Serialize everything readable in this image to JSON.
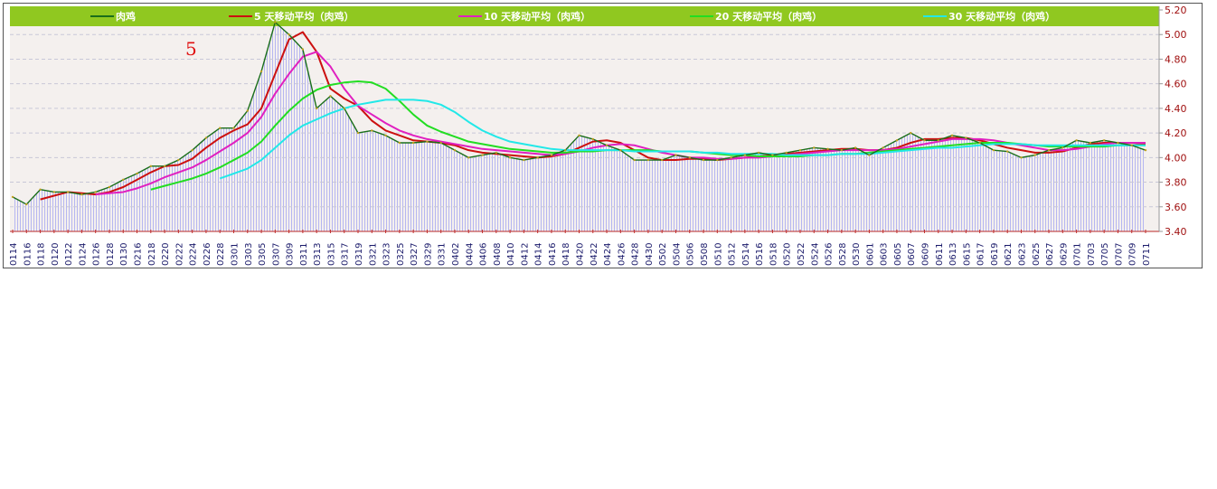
{
  "chart_data": {
    "type": "line",
    "annotation": "5",
    "ylim": [
      3.4,
      5.2
    ],
    "yticks": [
      "5.20",
      "5.00",
      "4.80",
      "4.60",
      "4.40",
      "4.20",
      "4.00",
      "3.80",
      "3.60",
      "3.40"
    ],
    "grid": true,
    "legend_position": "top",
    "x": [
      "0114",
      "0116",
      "0118",
      "0120",
      "0122",
      "0124",
      "0126",
      "0128",
      "0130",
      "0216",
      "0218",
      "0220",
      "0222",
      "0224",
      "0226",
      "0228",
      "0301",
      "0303",
      "0305",
      "0307",
      "0309",
      "0311",
      "0313",
      "0315",
      "0317",
      "0319",
      "0321",
      "0323",
      "0325",
      "0327",
      "0329",
      "0331",
      "0402",
      "0404",
      "0406",
      "0408",
      "0410",
      "0412",
      "0414",
      "0416",
      "0418",
      "0420",
      "0422",
      "0424",
      "0426",
      "0428",
      "0430",
      "0502",
      "0504",
      "0506",
      "0508",
      "0510",
      "0512",
      "0514",
      "0516",
      "0518",
      "0520",
      "0522",
      "0524",
      "0526",
      "0528",
      "0530",
      "0601",
      "0603",
      "0605",
      "0607",
      "0609",
      "0611",
      "0613",
      "0615",
      "0617",
      "0619",
      "0621",
      "0623",
      "0625",
      "0627",
      "0629",
      "0701",
      "0703",
      "0705",
      "0707",
      "0709",
      "0711"
    ],
    "series": [
      {
        "name": "肉鸡",
        "color": "#1a6e1a",
        "values": [
          3.68,
          3.62,
          3.74,
          3.72,
          3.72,
          3.7,
          3.72,
          3.76,
          3.82,
          3.87,
          3.93,
          3.93,
          3.98,
          4.06,
          4.16,
          4.24,
          4.24,
          4.38,
          4.7,
          5.1,
          5.0,
          4.88,
          4.4,
          4.5,
          4.4,
          4.2,
          4.22,
          4.18,
          4.12,
          4.12,
          4.13,
          4.12,
          4.06,
          4.0,
          4.02,
          4.04,
          4.0,
          3.98,
          4.0,
          4.02,
          4.06,
          4.18,
          4.15,
          4.1,
          4.06,
          3.98,
          3.98,
          3.98,
          4.02,
          4.0,
          3.98,
          3.98,
          4.0,
          4.02,
          4.04,
          4.02,
          4.04,
          4.06,
          4.08,
          4.07,
          4.06,
          4.08,
          4.02,
          4.08,
          4.14,
          4.2,
          4.14,
          4.14,
          4.18,
          4.16,
          4.12,
          4.06,
          4.05,
          4.0,
          4.02,
          4.06,
          4.08,
          4.14,
          4.12,
          4.14,
          4.12,
          4.1,
          4.06
        ]
      },
      {
        "name": "5 天移动平均（肉鸡）",
        "color": "#cc1010",
        "values": [
          null,
          null,
          3.66,
          3.69,
          3.72,
          3.71,
          3.7,
          3.72,
          3.76,
          3.82,
          3.88,
          3.93,
          3.94,
          3.99,
          4.08,
          4.16,
          4.22,
          4.27,
          4.4,
          4.68,
          4.96,
          5.02,
          4.86,
          4.56,
          4.48,
          4.42,
          4.3,
          4.22,
          4.18,
          4.14,
          4.13,
          4.12,
          4.1,
          4.06,
          4.04,
          4.03,
          4.02,
          4.01,
          4.0,
          4.01,
          4.03,
          4.08,
          4.13,
          4.14,
          4.12,
          4.06,
          4.0,
          3.98,
          3.98,
          3.99,
          3.99,
          3.98,
          3.99,
          4.0,
          4.01,
          4.02,
          4.03,
          4.04,
          4.05,
          4.06,
          4.07,
          4.07,
          4.06,
          4.06,
          4.08,
          4.12,
          4.15,
          4.15,
          4.16,
          4.16,
          4.14,
          4.11,
          4.08,
          4.06,
          4.04,
          4.04,
          4.05,
          4.08,
          4.11,
          4.12,
          4.12,
          4.12,
          4.11
        ]
      },
      {
        "name": "10 天移动平均（肉鸡）",
        "color": "#e020c0",
        "values": [
          null,
          null,
          null,
          null,
          null,
          null,
          3.7,
          3.71,
          3.72,
          3.75,
          3.79,
          3.84,
          3.88,
          3.92,
          3.98,
          4.05,
          4.12,
          4.2,
          4.33,
          4.52,
          4.68,
          4.82,
          4.86,
          4.74,
          4.56,
          4.42,
          4.35,
          4.28,
          4.22,
          4.18,
          4.15,
          4.13,
          4.11,
          4.09,
          4.07,
          4.06,
          4.05,
          4.04,
          4.03,
          4.02,
          4.03,
          4.05,
          4.08,
          4.1,
          4.11,
          4.1,
          4.07,
          4.04,
          4.02,
          4.0,
          4.0,
          3.99,
          3.99,
          4.0,
          4.0,
          4.01,
          4.02,
          4.03,
          4.04,
          4.05,
          4.06,
          4.06,
          4.06,
          4.06,
          4.07,
          4.09,
          4.11,
          4.13,
          4.15,
          4.15,
          4.15,
          4.14,
          4.12,
          4.1,
          4.08,
          4.06,
          4.06,
          4.07,
          4.09,
          4.11,
          4.12,
          4.12,
          4.12
        ]
      },
      {
        "name": "20 天移动平均（肉鸡）",
        "color": "#22dd22",
        "values": [
          null,
          null,
          null,
          null,
          null,
          null,
          null,
          null,
          null,
          null,
          3.74,
          3.77,
          3.8,
          3.83,
          3.87,
          3.92,
          3.98,
          4.04,
          4.13,
          4.26,
          4.38,
          4.48,
          4.55,
          4.59,
          4.61,
          4.62,
          4.61,
          4.56,
          4.46,
          4.35,
          4.26,
          4.21,
          4.17,
          4.13,
          4.11,
          4.09,
          4.07,
          4.06,
          4.05,
          4.04,
          4.04,
          4.05,
          4.05,
          4.06,
          4.06,
          4.06,
          4.06,
          4.05,
          4.05,
          4.05,
          4.04,
          4.03,
          4.02,
          4.02,
          4.01,
          4.01,
          4.01,
          4.01,
          4.02,
          4.02,
          4.03,
          4.03,
          4.04,
          4.05,
          4.06,
          4.07,
          4.08,
          4.09,
          4.1,
          4.11,
          4.12,
          4.12,
          4.12,
          4.11,
          4.1,
          4.09,
          4.09,
          4.09,
          4.09,
          4.09,
          4.1,
          4.1,
          4.1
        ]
      },
      {
        "name": "30 天移动平均（肉鸡）",
        "color": "#22e8e8",
        "values": [
          null,
          null,
          null,
          null,
          null,
          null,
          null,
          null,
          null,
          null,
          null,
          null,
          null,
          null,
          null,
          3.83,
          3.87,
          3.91,
          3.98,
          4.08,
          4.18,
          4.26,
          4.31,
          4.36,
          4.4,
          4.43,
          4.45,
          4.47,
          4.47,
          4.47,
          4.46,
          4.43,
          4.37,
          4.29,
          4.22,
          4.17,
          4.13,
          4.11,
          4.09,
          4.07,
          4.06,
          4.06,
          4.06,
          4.06,
          4.06,
          4.05,
          4.05,
          4.05,
          4.05,
          4.05,
          4.04,
          4.04,
          4.03,
          4.03,
          4.03,
          4.03,
          4.02,
          4.02,
          4.02,
          4.02,
          4.03,
          4.03,
          4.03,
          4.04,
          4.05,
          4.06,
          4.07,
          4.08,
          4.08,
          4.09,
          4.1,
          4.11,
          4.11,
          4.11,
          4.1,
          4.1,
          4.1,
          4.1,
          4.1,
          4.1,
          4.1,
          4.1,
          4.1
        ]
      }
    ]
  }
}
